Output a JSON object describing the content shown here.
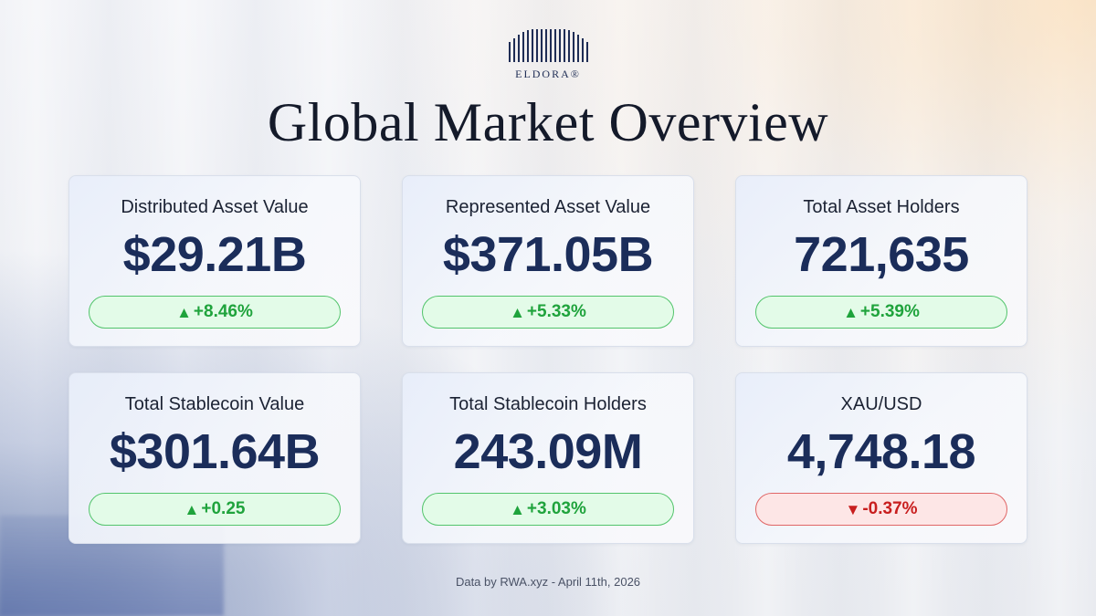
{
  "brand": {
    "name": "ELDORA®"
  },
  "title": "Global Market Overview",
  "cards": [
    {
      "label": "Distributed Asset Value",
      "value": "$29.21B",
      "change": "+8.46%",
      "direction": "up",
      "arrow": "▲"
    },
    {
      "label": "Represented Asset Value",
      "value": "$371.05B",
      "change": "+5.33%",
      "direction": "up",
      "arrow": "▲"
    },
    {
      "label": "Total Asset Holders",
      "value": "721,635",
      "change": "+5.39%",
      "direction": "up",
      "arrow": "▲"
    },
    {
      "label": "Total Stablecoin Value",
      "value": "$301.64B",
      "change": "+0.25",
      "direction": "up",
      "arrow": "▲"
    },
    {
      "label": "Total Stablecoin Holders",
      "value": "243.09M",
      "change": "+3.03%",
      "direction": "up",
      "arrow": "▲"
    },
    {
      "label": "XAU/USD",
      "value": "4,748.18",
      "change": "-0.37%",
      "direction": "down",
      "arrow": "▼"
    }
  ],
  "footer": "Data by RWA.xyz - April 11th, 2026",
  "colors": {
    "positive": "#1fa33c",
    "negative": "#c81e1e",
    "value_text": "#1b2d5a"
  }
}
